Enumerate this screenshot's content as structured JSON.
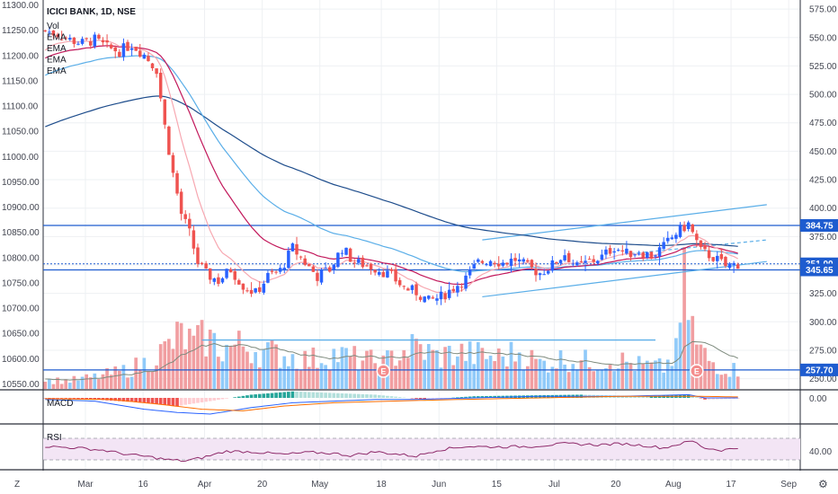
{
  "header": {
    "symbol": "ICICI BANK, 1D, NSE",
    "indicators": [
      "Vol",
      "EMA",
      "EMA",
      "EMA",
      "EMA"
    ]
  },
  "sub_labels": {
    "macd": "MACD",
    "rsi": "RSI"
  },
  "bottom_bar": {
    "left_button": "Z",
    "right_button": "⚙"
  },
  "colors": {
    "up": "#2962ff",
    "down": "#ef5350",
    "vol_up": "#90caf9",
    "vol_down": "#f19ea1",
    "ema_fast": "#f7a8b1",
    "ema_mid": "#c2185b",
    "ema_slow": "#5aaee8",
    "ema_long": "#1e4d8c",
    "level_line": "#1e5ccf",
    "rsi_line": "#8e2a6a",
    "rsi_band": "#f3e5f5"
  },
  "chart_data": {
    "type": "candlestick",
    "title": "ICICI BANK, 1D, NSE",
    "left_axis": {
      "ticks": [
        "11300.00",
        "11250.00",
        "11200.00",
        "11150.00",
        "11100.00",
        "11050.00",
        "11000.00",
        "10950.00",
        "10900.00",
        "10850.00",
        "10800.00",
        "10750.00",
        "10700.00",
        "10650.00",
        "10600.00",
        "10550.00"
      ],
      "range": [
        10540,
        11310
      ]
    },
    "right_axis": {
      "ticks": [
        "575.00",
        "550.00",
        "525.00",
        "500.00",
        "475.00",
        "450.00",
        "425.00",
        "400.00",
        "375.00",
        "350.00",
        "325.00",
        "300.00",
        "275.00",
        "250.00"
      ],
      "range": [
        241,
        583
      ]
    },
    "x_labels": [
      "Mar",
      "16",
      "Apr",
      "20",
      "May",
      "18",
      "Jun",
      "15",
      "Jul",
      "20",
      "Aug",
      "17",
      "Sep"
    ],
    "x_label_days": [
      11,
      26,
      42,
      57,
      72,
      88,
      103,
      118,
      133,
      149,
      164,
      179,
      194
    ],
    "x_range": [
      0,
      197
    ],
    "price_tags": [
      {
        "value": 384.75,
        "label": "384.75"
      },
      {
        "value": 351.0,
        "label": "351.00"
      },
      {
        "value": 345.65,
        "label": "345.65"
      },
      {
        "value": 257.7,
        "label": "257.70"
      }
    ],
    "events": [
      {
        "day": 82,
        "label": "E"
      },
      {
        "day": 158,
        "label": "E"
      }
    ],
    "levels": [
      {
        "value": 384.75,
        "x_from": 0,
        "x_to": 190
      },
      {
        "value": 345.65,
        "x_from": 0,
        "x_to": 190
      },
      {
        "value": 257.7,
        "x_from": 0,
        "x_to": 190
      }
    ],
    "dashed_level": {
      "value": 351.0
    },
    "support_zone": {
      "value": 284,
      "x_from": 38,
      "x_to": 148
    },
    "channel": {
      "upper": [
        [
          106,
          372
        ],
        [
          175,
          403
        ]
      ],
      "lower": [
        [
          106,
          322
        ],
        [
          175,
          353
        ]
      ],
      "mid_dashed": [
        [
          142,
          360
        ],
        [
          175,
          372
        ]
      ]
    },
    "macd_axis": "0.00",
    "rsi_axis": "40.00",
    "ohlc_anchor": [
      [
        0,
        556
      ],
      [
        3,
        553
      ],
      [
        6,
        548
      ],
      [
        9,
        545
      ],
      [
        12,
        548
      ],
      [
        15,
        541
      ],
      [
        18,
        538
      ],
      [
        21,
        544
      ],
      [
        24,
        535
      ],
      [
        27,
        522
      ],
      [
        29,
        472
      ],
      [
        31,
        430
      ],
      [
        33,
        395
      ],
      [
        35,
        378
      ],
      [
        37,
        352
      ],
      [
        39,
        342
      ],
      [
        42,
        336
      ],
      [
        45,
        346
      ],
      [
        48,
        332
      ],
      [
        51,
        325
      ],
      [
        54,
        340
      ],
      [
        57,
        345
      ],
      [
        60,
        365
      ],
      [
        63,
        352
      ],
      [
        66,
        340
      ],
      [
        69,
        346
      ],
      [
        72,
        365
      ],
      [
        75,
        352
      ],
      [
        78,
        350
      ],
      [
        81,
        346
      ],
      [
        84,
        340
      ],
      [
        87,
        330
      ],
      [
        90,
        326
      ],
      [
        93,
        318
      ],
      [
        96,
        322
      ],
      [
        99,
        330
      ],
      [
        102,
        338
      ],
      [
        105,
        352
      ],
      [
        108,
        355
      ],
      [
        111,
        352
      ],
      [
        114,
        355
      ],
      [
        117,
        348
      ],
      [
        120,
        343
      ],
      [
        123,
        350
      ],
      [
        126,
        360
      ],
      [
        129,
        348
      ],
      [
        132,
        353
      ],
      [
        135,
        357
      ],
      [
        138,
        366
      ],
      [
        141,
        360
      ],
      [
        144,
        362
      ],
      [
        147,
        358
      ],
      [
        150,
        366
      ],
      [
        153,
        378
      ],
      [
        156,
        386
      ],
      [
        159,
        362
      ],
      [
        162,
        357
      ],
      [
        165,
        349
      ],
      [
        168,
        351
      ]
    ],
    "volume_anchor": [
      [
        0,
        10
      ],
      [
        6,
        10
      ],
      [
        12,
        14
      ],
      [
        18,
        20
      ],
      [
        24,
        30
      ],
      [
        29,
        46
      ],
      [
        33,
        64
      ],
      [
        36,
        52
      ],
      [
        39,
        61
      ],
      [
        43,
        48
      ],
      [
        48,
        52
      ],
      [
        53,
        44
      ],
      [
        58,
        40
      ],
      [
        64,
        34
      ],
      [
        70,
        41
      ],
      [
        76,
        35
      ],
      [
        82,
        30
      ],
      [
        86,
        44
      ],
      [
        90,
        50
      ],
      [
        95,
        38
      ],
      [
        100,
        43
      ],
      [
        105,
        40
      ],
      [
        110,
        37
      ],
      [
        115,
        44
      ],
      [
        120,
        30
      ],
      [
        126,
        36
      ],
      [
        132,
        32
      ],
      [
        138,
        35
      ],
      [
        144,
        28
      ],
      [
        150,
        25
      ],
      [
        153,
        42
      ],
      [
        155,
        120
      ],
      [
        158,
        50
      ],
      [
        161,
        34
      ],
      [
        164,
        26
      ],
      [
        168,
        22
      ]
    ],
    "macd_hist_anchor": [
      [
        0,
        -0.2
      ],
      [
        12,
        -1
      ],
      [
        24,
        -3
      ],
      [
        32,
        -5
      ],
      [
        40,
        -2
      ],
      [
        50,
        2
      ],
      [
        60,
        4
      ],
      [
        70,
        3
      ],
      [
        80,
        2
      ],
      [
        92,
        -1
      ],
      [
        104,
        1
      ],
      [
        116,
        1.5
      ],
      [
        130,
        2
      ],
      [
        146,
        1
      ],
      [
        156,
        2
      ],
      [
        160,
        -1
      ],
      [
        168,
        -0.5
      ]
    ],
    "macd_line_anchor": [
      [
        0,
        -1
      ],
      [
        12,
        -2
      ],
      [
        24,
        -7
      ],
      [
        32,
        -9
      ],
      [
        40,
        -10
      ],
      [
        50,
        -6
      ],
      [
        60,
        -3
      ],
      [
        70,
        -2
      ],
      [
        80,
        -1
      ],
      [
        90,
        -1
      ],
      [
        104,
        0
      ],
      [
        120,
        1
      ],
      [
        140,
        1
      ],
      [
        156,
        2
      ],
      [
        160,
        0
      ],
      [
        168,
        0
      ]
    ],
    "macd_signal_anchor": [
      [
        0,
        -0.5
      ],
      [
        16,
        -1
      ],
      [
        28,
        -4
      ],
      [
        38,
        -7
      ],
      [
        48,
        -8
      ],
      [
        58,
        -5
      ],
      [
        70,
        -3
      ],
      [
        84,
        -2
      ],
      [
        100,
        -1
      ],
      [
        120,
        0
      ],
      [
        140,
        1
      ],
      [
        158,
        1
      ],
      [
        168,
        0.6
      ]
    ],
    "rsi_anchor": [
      [
        0,
        55
      ],
      [
        8,
        52
      ],
      [
        14,
        48
      ],
      [
        20,
        40
      ],
      [
        25,
        36
      ],
      [
        30,
        30
      ],
      [
        34,
        28
      ],
      [
        38,
        34
      ],
      [
        44,
        46
      ],
      [
        50,
        45
      ],
      [
        58,
        40
      ],
      [
        64,
        44
      ],
      [
        70,
        42
      ],
      [
        74,
        38
      ],
      [
        80,
        45
      ],
      [
        86,
        40
      ],
      [
        90,
        37
      ],
      [
        95,
        48
      ],
      [
        102,
        55
      ],
      [
        110,
        54
      ],
      [
        118,
        55
      ],
      [
        126,
        60
      ],
      [
        134,
        58
      ],
      [
        140,
        60
      ],
      [
        146,
        56
      ],
      [
        150,
        52
      ],
      [
        154,
        60
      ],
      [
        157,
        65
      ],
      [
        160,
        52
      ],
      [
        164,
        48
      ],
      [
        168,
        52
      ]
    ]
  }
}
